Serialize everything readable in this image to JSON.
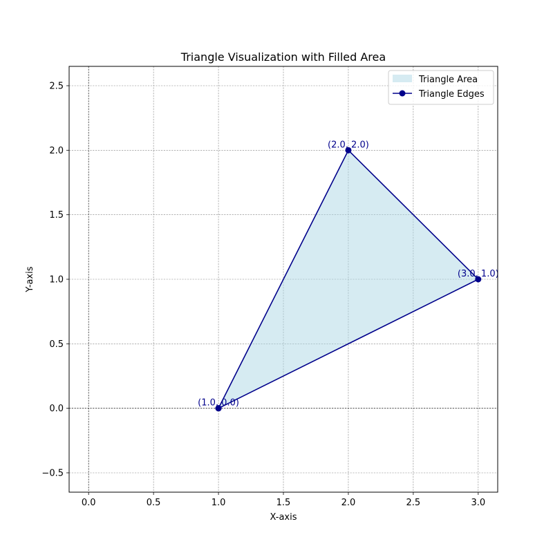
{
  "chart_data": {
    "type": "line",
    "title": "Triangle Visualization with Filled Area",
    "xlabel": "X-axis",
    "ylabel": "Y-axis",
    "xlim": [
      -0.15,
      3.15
    ],
    "ylim": [
      -0.65,
      2.65
    ],
    "xticks": [
      0.0,
      0.5,
      1.0,
      1.5,
      2.0,
      2.5,
      3.0
    ],
    "xtick_labels": [
      "0.0",
      "0.5",
      "1.0",
      "1.5",
      "2.0",
      "2.5",
      "3.0"
    ],
    "yticks": [
      -0.5,
      0.0,
      0.5,
      1.0,
      1.5,
      2.0,
      2.5
    ],
    "ytick_labels": [
      "−0.5",
      "0.0",
      "0.5",
      "1.0",
      "1.5",
      "2.0",
      "2.5"
    ],
    "grid": true,
    "reference_lines": {
      "x": 0,
      "y": 0
    },
    "legend_position": "upper right",
    "series": [
      {
        "name": "Triangle Area",
        "kind": "fill",
        "color": "#add8e6",
        "x": [
          1,
          2,
          3
        ],
        "y": [
          0,
          2,
          1
        ]
      },
      {
        "name": "Triangle Edges",
        "kind": "line",
        "marker": "circle",
        "color": "#00008b",
        "x": [
          1,
          2,
          3,
          1
        ],
        "y": [
          0,
          2,
          1,
          0
        ]
      }
    ],
    "point_labels": [
      {
        "x": 1,
        "y": 0,
        "text": "(1.0, 0.0)"
      },
      {
        "x": 2,
        "y": 2,
        "text": "(2.0, 2.0)"
      },
      {
        "x": 3,
        "y": 1,
        "text": "(3.0, 1.0)"
      }
    ]
  }
}
